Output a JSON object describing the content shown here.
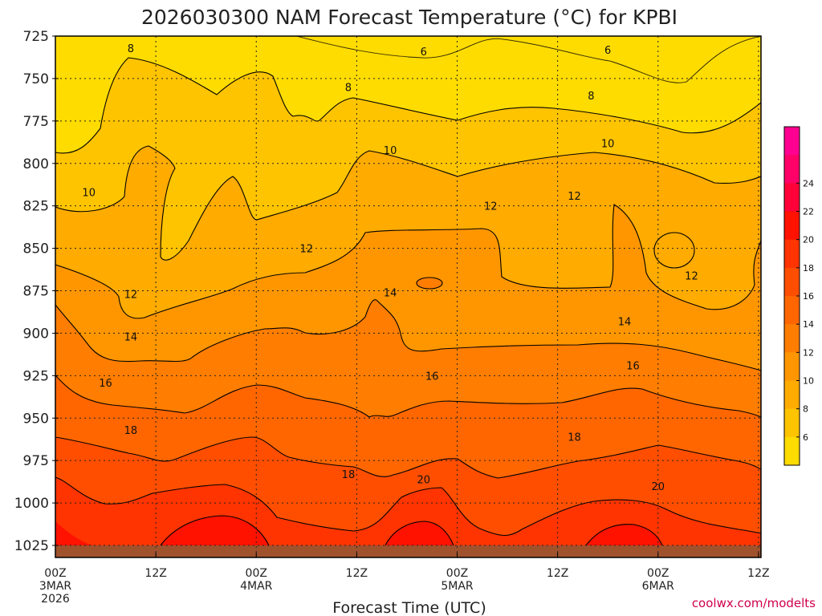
{
  "chart_data": {
    "type": "heatmap",
    "title": "2026030300 NAM Forecast Temperature (°C) for KPBI",
    "xlabel": "Forecast Time (UTC)",
    "ylabel": "",
    "y_ticks": [
      "725",
      "750",
      "775",
      "800",
      "825",
      "850",
      "875",
      "900",
      "925",
      "950",
      "975",
      "1000",
      "1025"
    ],
    "ylim": [
      725,
      1025
    ],
    "x_ticks": [
      {
        "hour": 0,
        "lines": [
          "00Z",
          "3MAR",
          "2026"
        ]
      },
      {
        "hour": 12,
        "lines": [
          "12Z"
        ]
      },
      {
        "hour": 24,
        "lines": [
          "00Z",
          "4MAR"
        ]
      },
      {
        "hour": 36,
        "lines": [
          "12Z"
        ]
      },
      {
        "hour": 48,
        "lines": [
          "00Z",
          "5MAR"
        ]
      },
      {
        "hour": 60,
        "lines": [
          "12Z"
        ]
      },
      {
        "hour": 72,
        "lines": [
          "00Z",
          "6MAR"
        ]
      },
      {
        "hour": 84,
        "lines": [
          "12Z"
        ]
      }
    ],
    "xlim": [
      0,
      84
    ],
    "colorbar": {
      "levels": [
        4,
        6,
        8,
        10,
        12,
        14,
        16,
        18,
        20,
        22,
        24,
        26
      ],
      "labels": [
        "6",
        "8",
        "10",
        "12",
        "14",
        "16",
        "18",
        "20",
        "22",
        "24"
      ],
      "colors": [
        "#ffdc00",
        "#ffc400",
        "#ffab00",
        "#ff9600",
        "#ff7d00",
        "#ff6600",
        "#ff4e00",
        "#ff3400",
        "#ff1200",
        "#ff0038",
        "#ff0068",
        "#ff0090"
      ]
    },
    "contour_labels": [
      {
        "text": "8",
        "hour": 9,
        "p": 732
      },
      {
        "text": "6",
        "hour": 44,
        "p": 734
      },
      {
        "text": "6",
        "hour": 66,
        "p": 733
      },
      {
        "text": "8",
        "hour": 35,
        "p": 755
      },
      {
        "text": "8",
        "hour": 64,
        "p": 760
      },
      {
        "text": "10",
        "hour": 4,
        "p": 817
      },
      {
        "text": "10",
        "hour": 40,
        "p": 792
      },
      {
        "text": "10",
        "hour": 66,
        "p": 788
      },
      {
        "text": "12",
        "hour": 62,
        "p": 819
      },
      {
        "text": "12",
        "hour": 52,
        "p": 825
      },
      {
        "text": "12",
        "hour": 30,
        "p": 850
      },
      {
        "text": "12",
        "hour": 9,
        "p": 877
      },
      {
        "text": "12",
        "hour": 76,
        "p": 866
      },
      {
        "text": "14",
        "hour": 40,
        "p": 876
      },
      {
        "text": "14",
        "hour": 9,
        "p": 902
      },
      {
        "text": "14",
        "hour": 68,
        "p": 893
      },
      {
        "text": "16",
        "hour": 6,
        "p": 929
      },
      {
        "text": "16",
        "hour": 45,
        "p": 925
      },
      {
        "text": "16",
        "hour": 69,
        "p": 919
      },
      {
        "text": "18",
        "hour": 9,
        "p": 957
      },
      {
        "text": "18",
        "hour": 35,
        "p": 983
      },
      {
        "text": "18",
        "hour": 62,
        "p": 961
      },
      {
        "text": "20",
        "hour": 44,
        "p": 986
      },
      {
        "text": "20",
        "hour": 72,
        "p": 990
      }
    ]
  },
  "credit": "coolwx.com/modelts"
}
